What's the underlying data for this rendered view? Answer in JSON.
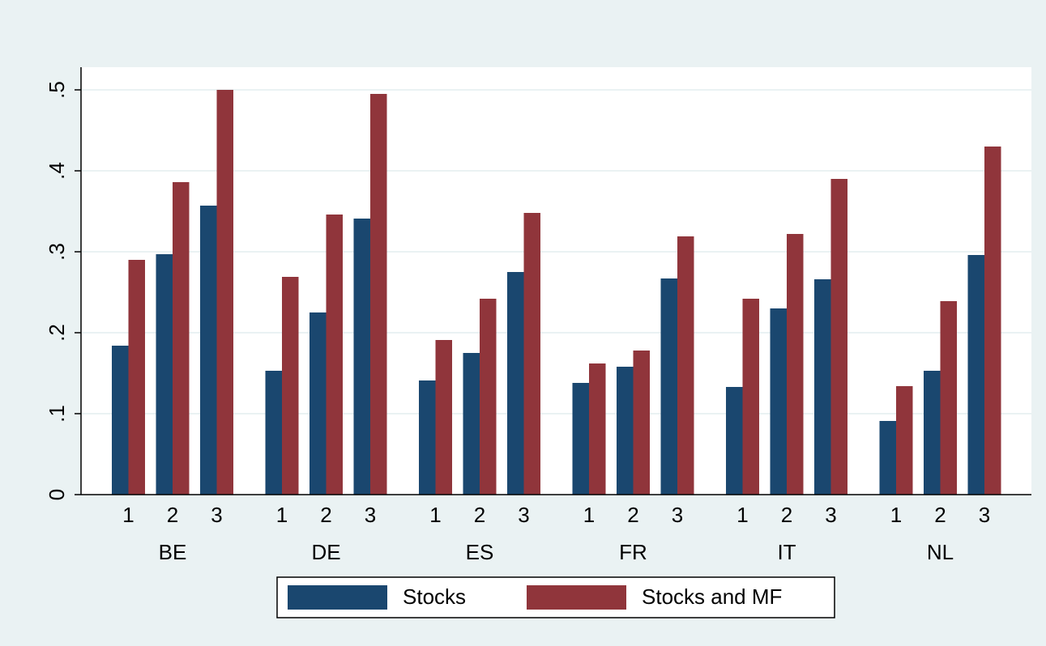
{
  "chart_data": {
    "type": "bar",
    "groups": [
      "BE",
      "DE",
      "ES",
      "FR",
      "IT",
      "NL"
    ],
    "categories": [
      "1",
      "2",
      "3",
      "1",
      "2",
      "3",
      "1",
      "2",
      "3",
      "1",
      "2",
      "3",
      "1",
      "2",
      "3",
      "1",
      "2",
      "3"
    ],
    "series": [
      {
        "name": "Stocks",
        "color": "#1a476f",
        "values": [
          0.184,
          0.297,
          0.357,
          0.153,
          0.225,
          0.341,
          0.141,
          0.175,
          0.275,
          0.138,
          0.158,
          0.267,
          0.133,
          0.23,
          0.266,
          0.091,
          0.153,
          0.296
        ]
      },
      {
        "name": "Stocks and MF",
        "color": "#90353b",
        "values": [
          0.29,
          0.386,
          0.5,
          0.269,
          0.346,
          0.495,
          0.191,
          0.242,
          0.348,
          0.162,
          0.178,
          0.319,
          0.242,
          0.322,
          0.39,
          0.134,
          0.239,
          0.43
        ]
      }
    ],
    "ylim": [
      0,
      0.528
    ],
    "yticks": [
      0,
      {
        "value": 0.1,
        "label": ".1"
      },
      {
        "value": 0.2,
        "label": ".2"
      },
      {
        "value": 0.3,
        "label": ".3"
      },
      {
        "value": 0.4,
        "label": ".4"
      },
      {
        "value": 0.5,
        "label": ".5"
      }
    ],
    "grid": true,
    "legend": "bottom"
  }
}
